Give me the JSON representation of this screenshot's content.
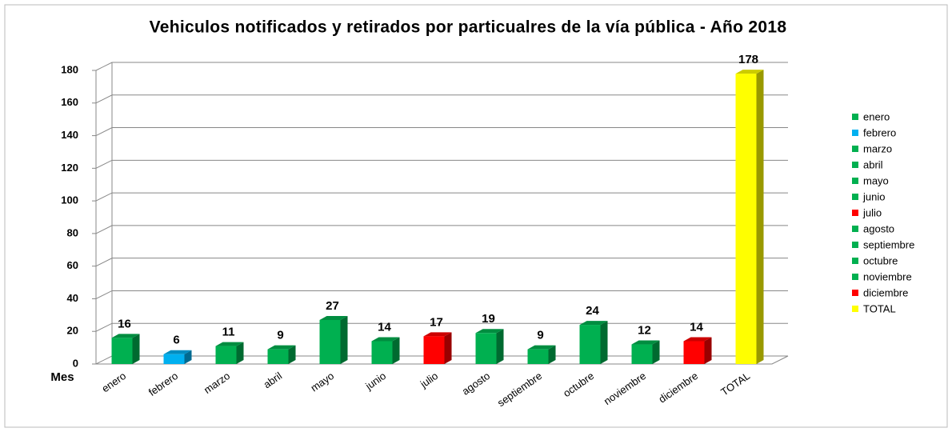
{
  "chart_data": {
    "type": "bar3d",
    "title": "Vehiculos notificados y retirados por particualres de la vía pública - Año 2018",
    "x_label": "Mes",
    "categories": [
      "enero",
      "febrero",
      "marzo",
      "abril",
      "mayo",
      "junio",
      "julio",
      "agosto",
      "septiembre",
      "octubre",
      "noviembre",
      "diciembre",
      "TOTAL"
    ],
    "values": [
      16,
      6,
      11,
      9,
      27,
      14,
      17,
      19,
      9,
      24,
      12,
      14,
      178
    ],
    "colors": [
      "#00b050",
      "#00b0f0",
      "#00b050",
      "#00b050",
      "#00b050",
      "#00b050",
      "#ff0000",
      "#00b050",
      "#00b050",
      "#00b050",
      "#00b050",
      "#ff0000",
      "#ffff00"
    ],
    "ylim": [
      0,
      180
    ],
    "yticks": [
      0,
      20,
      40,
      60,
      80,
      100,
      120,
      140,
      160,
      180
    ],
    "grid": true,
    "legend": "right"
  }
}
